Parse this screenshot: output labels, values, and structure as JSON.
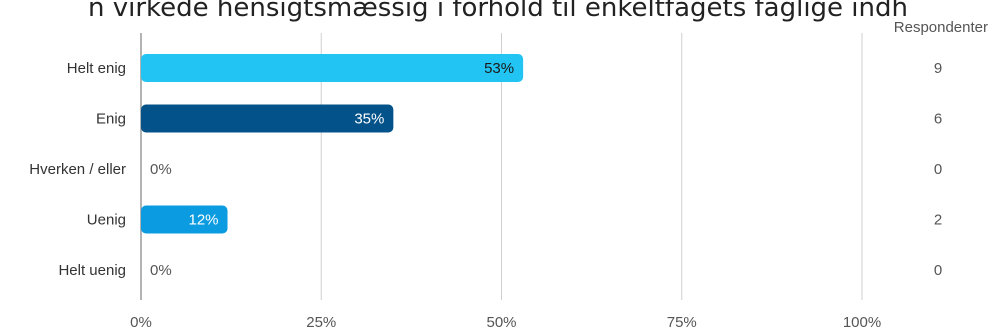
{
  "title": "n virkede hensigtsmæssig i forhold til enkeltfagets faglige indh",
  "respondents_header": "Respondenter",
  "chart_data": {
    "type": "bar",
    "orientation": "horizontal",
    "categories": [
      "Helt enig",
      "Enig",
      "Hverken / eller",
      "Uenig",
      "Helt uenig"
    ],
    "values": [
      53,
      35,
      0,
      12,
      0
    ],
    "value_labels": [
      "53%",
      "35%",
      "0%",
      "12%",
      "0%"
    ],
    "respondents": [
      9,
      6,
      0,
      2,
      0
    ],
    "bar_colors": [
      "#22c4f3",
      "#04528a",
      "#22c4f3",
      "#0a9be0",
      "#22c4f3"
    ],
    "xlim": [
      0,
      100
    ],
    "xticks": [
      0,
      25,
      50,
      75,
      100
    ],
    "xtick_labels": [
      "0%",
      "25%",
      "50%",
      "75%",
      "100%"
    ],
    "grid": true
  }
}
